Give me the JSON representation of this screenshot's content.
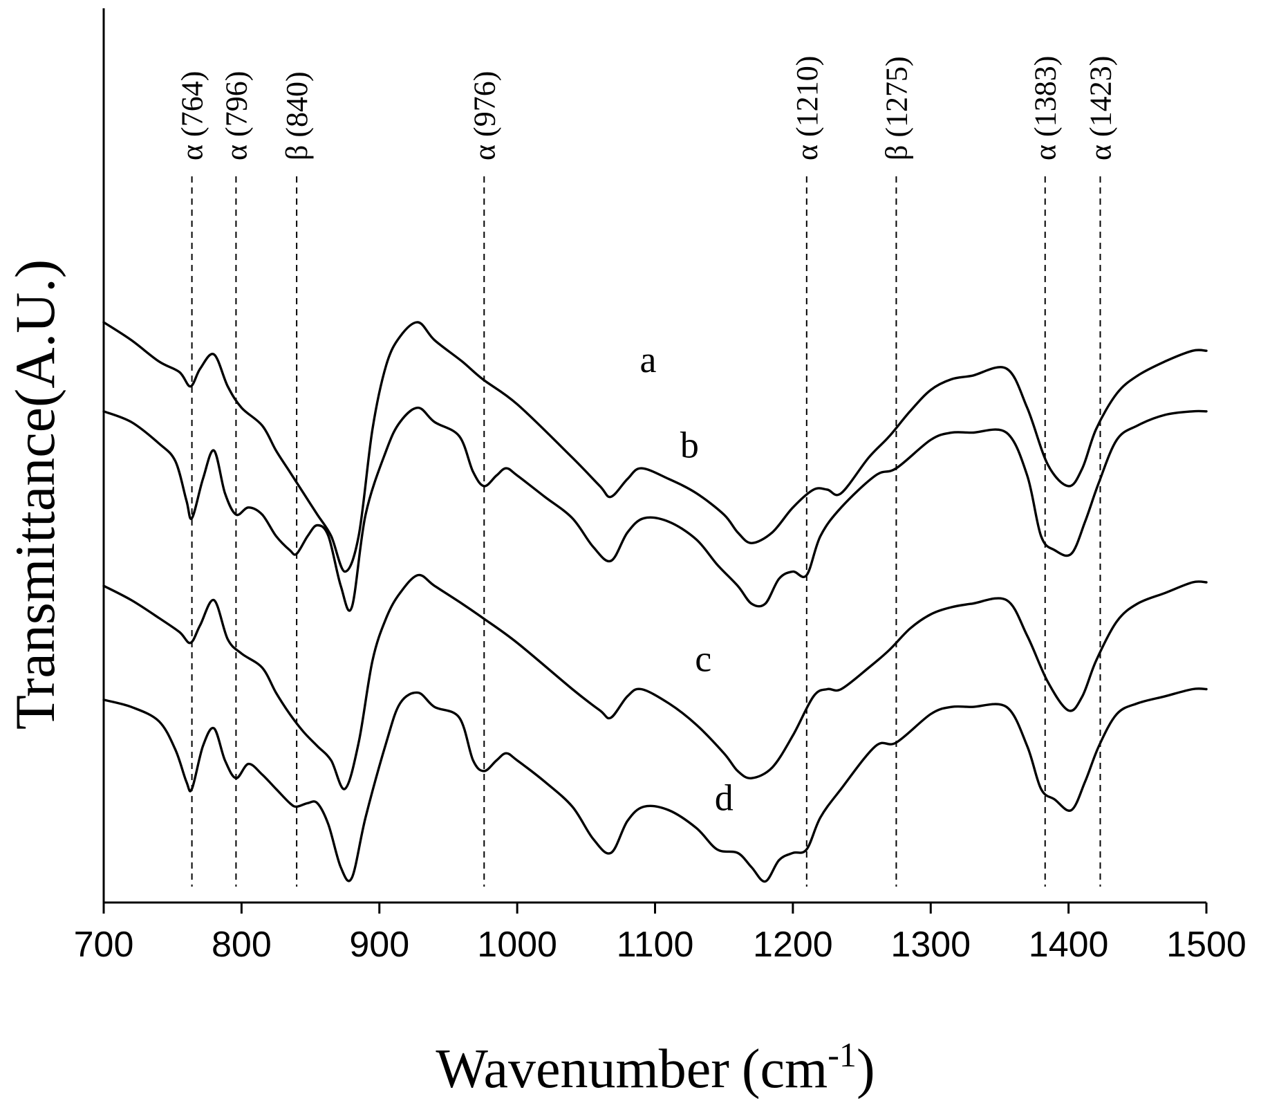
{
  "chart_data": {
    "type": "line",
    "title": "",
    "xlabel": "Wavenumber",
    "xlabel_unit_base": "(cm",
    "xlabel_unit_exp": "-1",
    "xlabel_unit_close": ")",
    "ylabel": "Transmittance(A.U.)",
    "xlim": [
      700,
      1500
    ],
    "ylim": [
      0,
      10
    ],
    "x_ticks": [
      700,
      800,
      900,
      1000,
      1100,
      1200,
      1300,
      1400,
      1500
    ],
    "x_tick_labels": [
      "700",
      "800",
      "900",
      "1000",
      "1100",
      "1200",
      "1300",
      "1400",
      "1500"
    ],
    "y_ticks_shown": false,
    "grid": false,
    "markers": [
      {
        "x": 764,
        "label": "α (764)"
      },
      {
        "x": 796,
        "label": "α (796)"
      },
      {
        "x": 840,
        "label": "β (840)"
      },
      {
        "x": 976,
        "label": "α (976)"
      },
      {
        "x": 1210,
        "label": "α (1210)"
      },
      {
        "x": 1275,
        "label": "β (1275)"
      },
      {
        "x": 1383,
        "label": "α (1383)"
      },
      {
        "x": 1423,
        "label": "α (1423)"
      }
    ],
    "series": [
      {
        "name": "a",
        "label_at": [
          1095,
          7.3
        ],
        "x": [
          700,
          720,
          740,
          755,
          763,
          770,
          780,
          790,
          800,
          815,
          825,
          835,
          845,
          855,
          865,
          875,
          885,
          895,
          905,
          915,
          928,
          940,
          960,
          975,
          1000,
          1040,
          1060,
          1068,
          1080,
          1090,
          1110,
          1130,
          1150,
          1160,
          1170,
          1185,
          1200,
          1215,
          1225,
          1235,
          1255,
          1270,
          1285,
          1300,
          1315,
          1330,
          1355,
          1370,
          1385,
          1400,
          1410,
          1420,
          1435,
          1450,
          1470,
          1490,
          1500
        ],
        "y": [
          8.0,
          7.75,
          7.45,
          7.3,
          7.1,
          7.35,
          7.55,
          7.1,
          6.8,
          6.55,
          6.2,
          5.9,
          5.6,
          5.3,
          5.0,
          4.5,
          5.0,
          6.5,
          7.4,
          7.8,
          8.0,
          7.75,
          7.45,
          7.2,
          6.85,
          6.1,
          5.7,
          5.55,
          5.8,
          5.95,
          5.8,
          5.6,
          5.3,
          5.05,
          4.9,
          5.05,
          5.4,
          5.65,
          5.65,
          5.6,
          6.1,
          6.4,
          6.75,
          7.05,
          7.2,
          7.25,
          7.35,
          6.8,
          6.0,
          5.7,
          5.95,
          6.5,
          7.0,
          7.25,
          7.45,
          7.6,
          7.6
        ]
      },
      {
        "name": "b",
        "label_at": [
          1125,
          6.1
        ],
        "x": [
          700,
          720,
          740,
          752,
          760,
          764,
          772,
          780,
          788,
          796,
          805,
          815,
          825,
          835,
          840,
          848,
          855,
          863,
          872,
          880,
          890,
          905,
          915,
          928,
          940,
          958,
          968,
          976,
          985,
          992,
          1000,
          1020,
          1040,
          1055,
          1068,
          1080,
          1092,
          1110,
          1130,
          1145,
          1160,
          1170,
          1180,
          1190,
          1200,
          1210,
          1220,
          1235,
          1260,
          1275,
          1300,
          1315,
          1330,
          1355,
          1370,
          1380,
          1390,
          1402,
          1412,
          1422,
          1435,
          1450,
          1470,
          1490,
          1500
        ],
        "y": [
          6.75,
          6.6,
          6.3,
          6.05,
          5.5,
          5.25,
          5.8,
          6.2,
          5.6,
          5.3,
          5.4,
          5.3,
          5.0,
          4.8,
          4.75,
          5.0,
          5.15,
          5.0,
          4.3,
          4.0,
          5.3,
          6.2,
          6.6,
          6.8,
          6.6,
          6.4,
          5.9,
          5.7,
          5.85,
          5.95,
          5.85,
          5.55,
          5.25,
          4.85,
          4.65,
          5.05,
          5.25,
          5.2,
          4.95,
          4.6,
          4.3,
          4.05,
          4.05,
          4.4,
          4.5,
          4.45,
          5.0,
          5.4,
          5.85,
          5.95,
          6.35,
          6.45,
          6.45,
          6.45,
          5.85,
          5.0,
          4.8,
          4.75,
          5.2,
          5.75,
          6.35,
          6.55,
          6.7,
          6.75,
          6.75
        ]
      },
      {
        "name": "c",
        "label_at": [
          1135,
          3.1
        ],
        "x": [
          700,
          720,
          740,
          755,
          763,
          770,
          780,
          790,
          800,
          815,
          825,
          835,
          845,
          855,
          865,
          875,
          885,
          895,
          905,
          915,
          928,
          940,
          960,
          975,
          1000,
          1040,
          1060,
          1068,
          1080,
          1090,
          1110,
          1130,
          1150,
          1160,
          1170,
          1185,
          1200,
          1215,
          1225,
          1235,
          1255,
          1270,
          1285,
          1300,
          1315,
          1330,
          1355,
          1370,
          1385,
          1400,
          1410,
          1420,
          1435,
          1450,
          1470,
          1490,
          1500
        ],
        "y": [
          4.3,
          4.1,
          3.85,
          3.65,
          3.5,
          3.75,
          4.1,
          3.55,
          3.35,
          3.15,
          2.8,
          2.5,
          2.25,
          2.05,
          1.85,
          1.45,
          2.1,
          3.25,
          3.85,
          4.2,
          4.45,
          4.3,
          4.05,
          3.85,
          3.5,
          2.85,
          2.55,
          2.45,
          2.75,
          2.85,
          2.65,
          2.35,
          1.95,
          1.7,
          1.6,
          1.75,
          2.2,
          2.75,
          2.85,
          2.85,
          3.15,
          3.4,
          3.7,
          3.9,
          4.0,
          4.05,
          4.1,
          3.6,
          2.95,
          2.55,
          2.75,
          3.25,
          3.8,
          4.05,
          4.2,
          4.35,
          4.35
        ]
      },
      {
        "name": "d",
        "label_at": [
          1150,
          1.15
        ],
        "x": [
          700,
          720,
          740,
          752,
          760,
          764,
          772,
          780,
          788,
          796,
          805,
          815,
          825,
          835,
          840,
          848,
          855,
          863,
          872,
          880,
          890,
          905,
          915,
          928,
          940,
          958,
          968,
          976,
          985,
          992,
          1000,
          1020,
          1040,
          1055,
          1068,
          1080,
          1092,
          1110,
          1130,
          1145,
          1160,
          1170,
          1180,
          1190,
          1200,
          1210,
          1220,
          1235,
          1260,
          1275,
          1300,
          1315,
          1330,
          1355,
          1370,
          1380,
          1390,
          1402,
          1412,
          1422,
          1435,
          1450,
          1470,
          1490,
          1500
        ],
        "y": [
          2.7,
          2.6,
          2.4,
          2.0,
          1.55,
          1.45,
          2.05,
          2.3,
          1.85,
          1.6,
          1.8,
          1.65,
          1.45,
          1.25,
          1.2,
          1.25,
          1.25,
          0.95,
          0.35,
          0.2,
          1.05,
          2.1,
          2.65,
          2.8,
          2.6,
          2.45,
          1.85,
          1.7,
          1.85,
          1.95,
          1.85,
          1.55,
          1.2,
          0.75,
          0.55,
          1.0,
          1.2,
          1.15,
          0.9,
          0.6,
          0.55,
          0.35,
          0.15,
          0.45,
          0.55,
          0.6,
          1.05,
          1.45,
          2.05,
          2.1,
          2.5,
          2.6,
          2.6,
          2.6,
          2.05,
          1.45,
          1.3,
          1.15,
          1.55,
          2.05,
          2.5,
          2.65,
          2.75,
          2.85,
          2.85
        ]
      }
    ]
  }
}
